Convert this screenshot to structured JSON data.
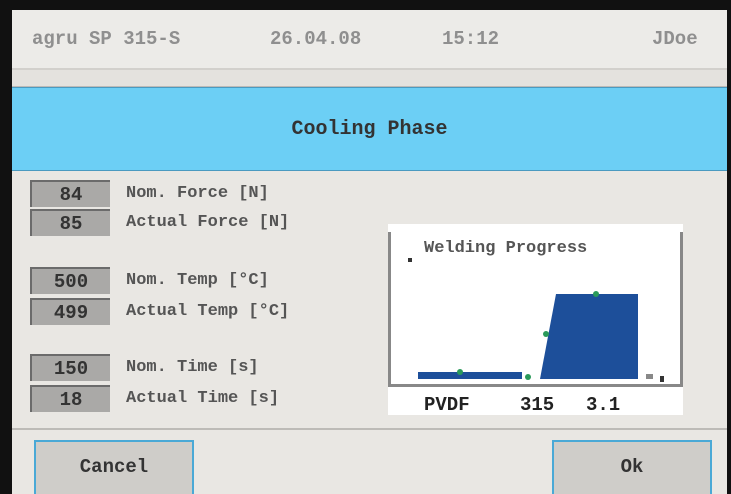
{
  "header": {
    "machine": "agru SP 315-S",
    "date": "26.04.08",
    "time": "15:12",
    "user": "JDoe"
  },
  "phase": "Cooling Phase",
  "rows": [
    {
      "value": "84",
      "label": "Nom. Force [N]"
    },
    {
      "value": "85",
      "label": "Actual Force [N]"
    },
    {
      "value": "500",
      "label": "Nom. Temp [°C]"
    },
    {
      "value": "499",
      "label": "Actual Temp [°C]"
    },
    {
      "value": "150",
      "label": "Nom. Time [s]"
    },
    {
      "value": "18",
      "label": "Actual Time [s]"
    }
  ],
  "progress": {
    "title": "Welding Progress",
    "material": "PVDF",
    "diameter": "315",
    "sdr": "3.1"
  },
  "buttons": {
    "cancel": "Cancel",
    "ok": "Ok"
  }
}
